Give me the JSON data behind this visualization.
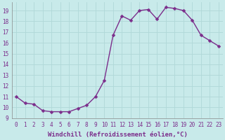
{
  "x": [
    0,
    1,
    2,
    3,
    4,
    5,
    6,
    7,
    8,
    9,
    10,
    11,
    12,
    13,
    14,
    15,
    16,
    17,
    18,
    19,
    20,
    21,
    22,
    23
  ],
  "y": [
    11.0,
    10.4,
    10.3,
    9.7,
    9.6,
    9.6,
    9.6,
    9.9,
    10.2,
    11.0,
    12.5,
    16.7,
    18.5,
    18.1,
    19.0,
    19.1,
    18.2,
    19.3,
    19.2,
    19.0,
    18.1,
    16.7,
    16.2,
    15.7
  ],
  "line_color": "#7b2d8b",
  "marker_color": "#7b2d8b",
  "bg_color": "#c8eaea",
  "grid_color": "#b0d8d8",
  "ylim": [
    9,
    19.8
  ],
  "xlim": [
    -0.5,
    23.5
  ],
  "yticks": [
    9,
    10,
    11,
    12,
    13,
    14,
    15,
    16,
    17,
    18,
    19
  ],
  "xticks": [
    0,
    1,
    2,
    3,
    4,
    5,
    6,
    7,
    8,
    9,
    10,
    11,
    12,
    13,
    14,
    15,
    16,
    17,
    18,
    19,
    20,
    21,
    22,
    23
  ],
  "xlabel": "Windchill (Refroidissement éolien,°C)",
  "xlabel_fontsize": 6.5,
  "tick_fontsize": 5.5,
  "line_width": 1.0,
  "marker_size": 2.5
}
